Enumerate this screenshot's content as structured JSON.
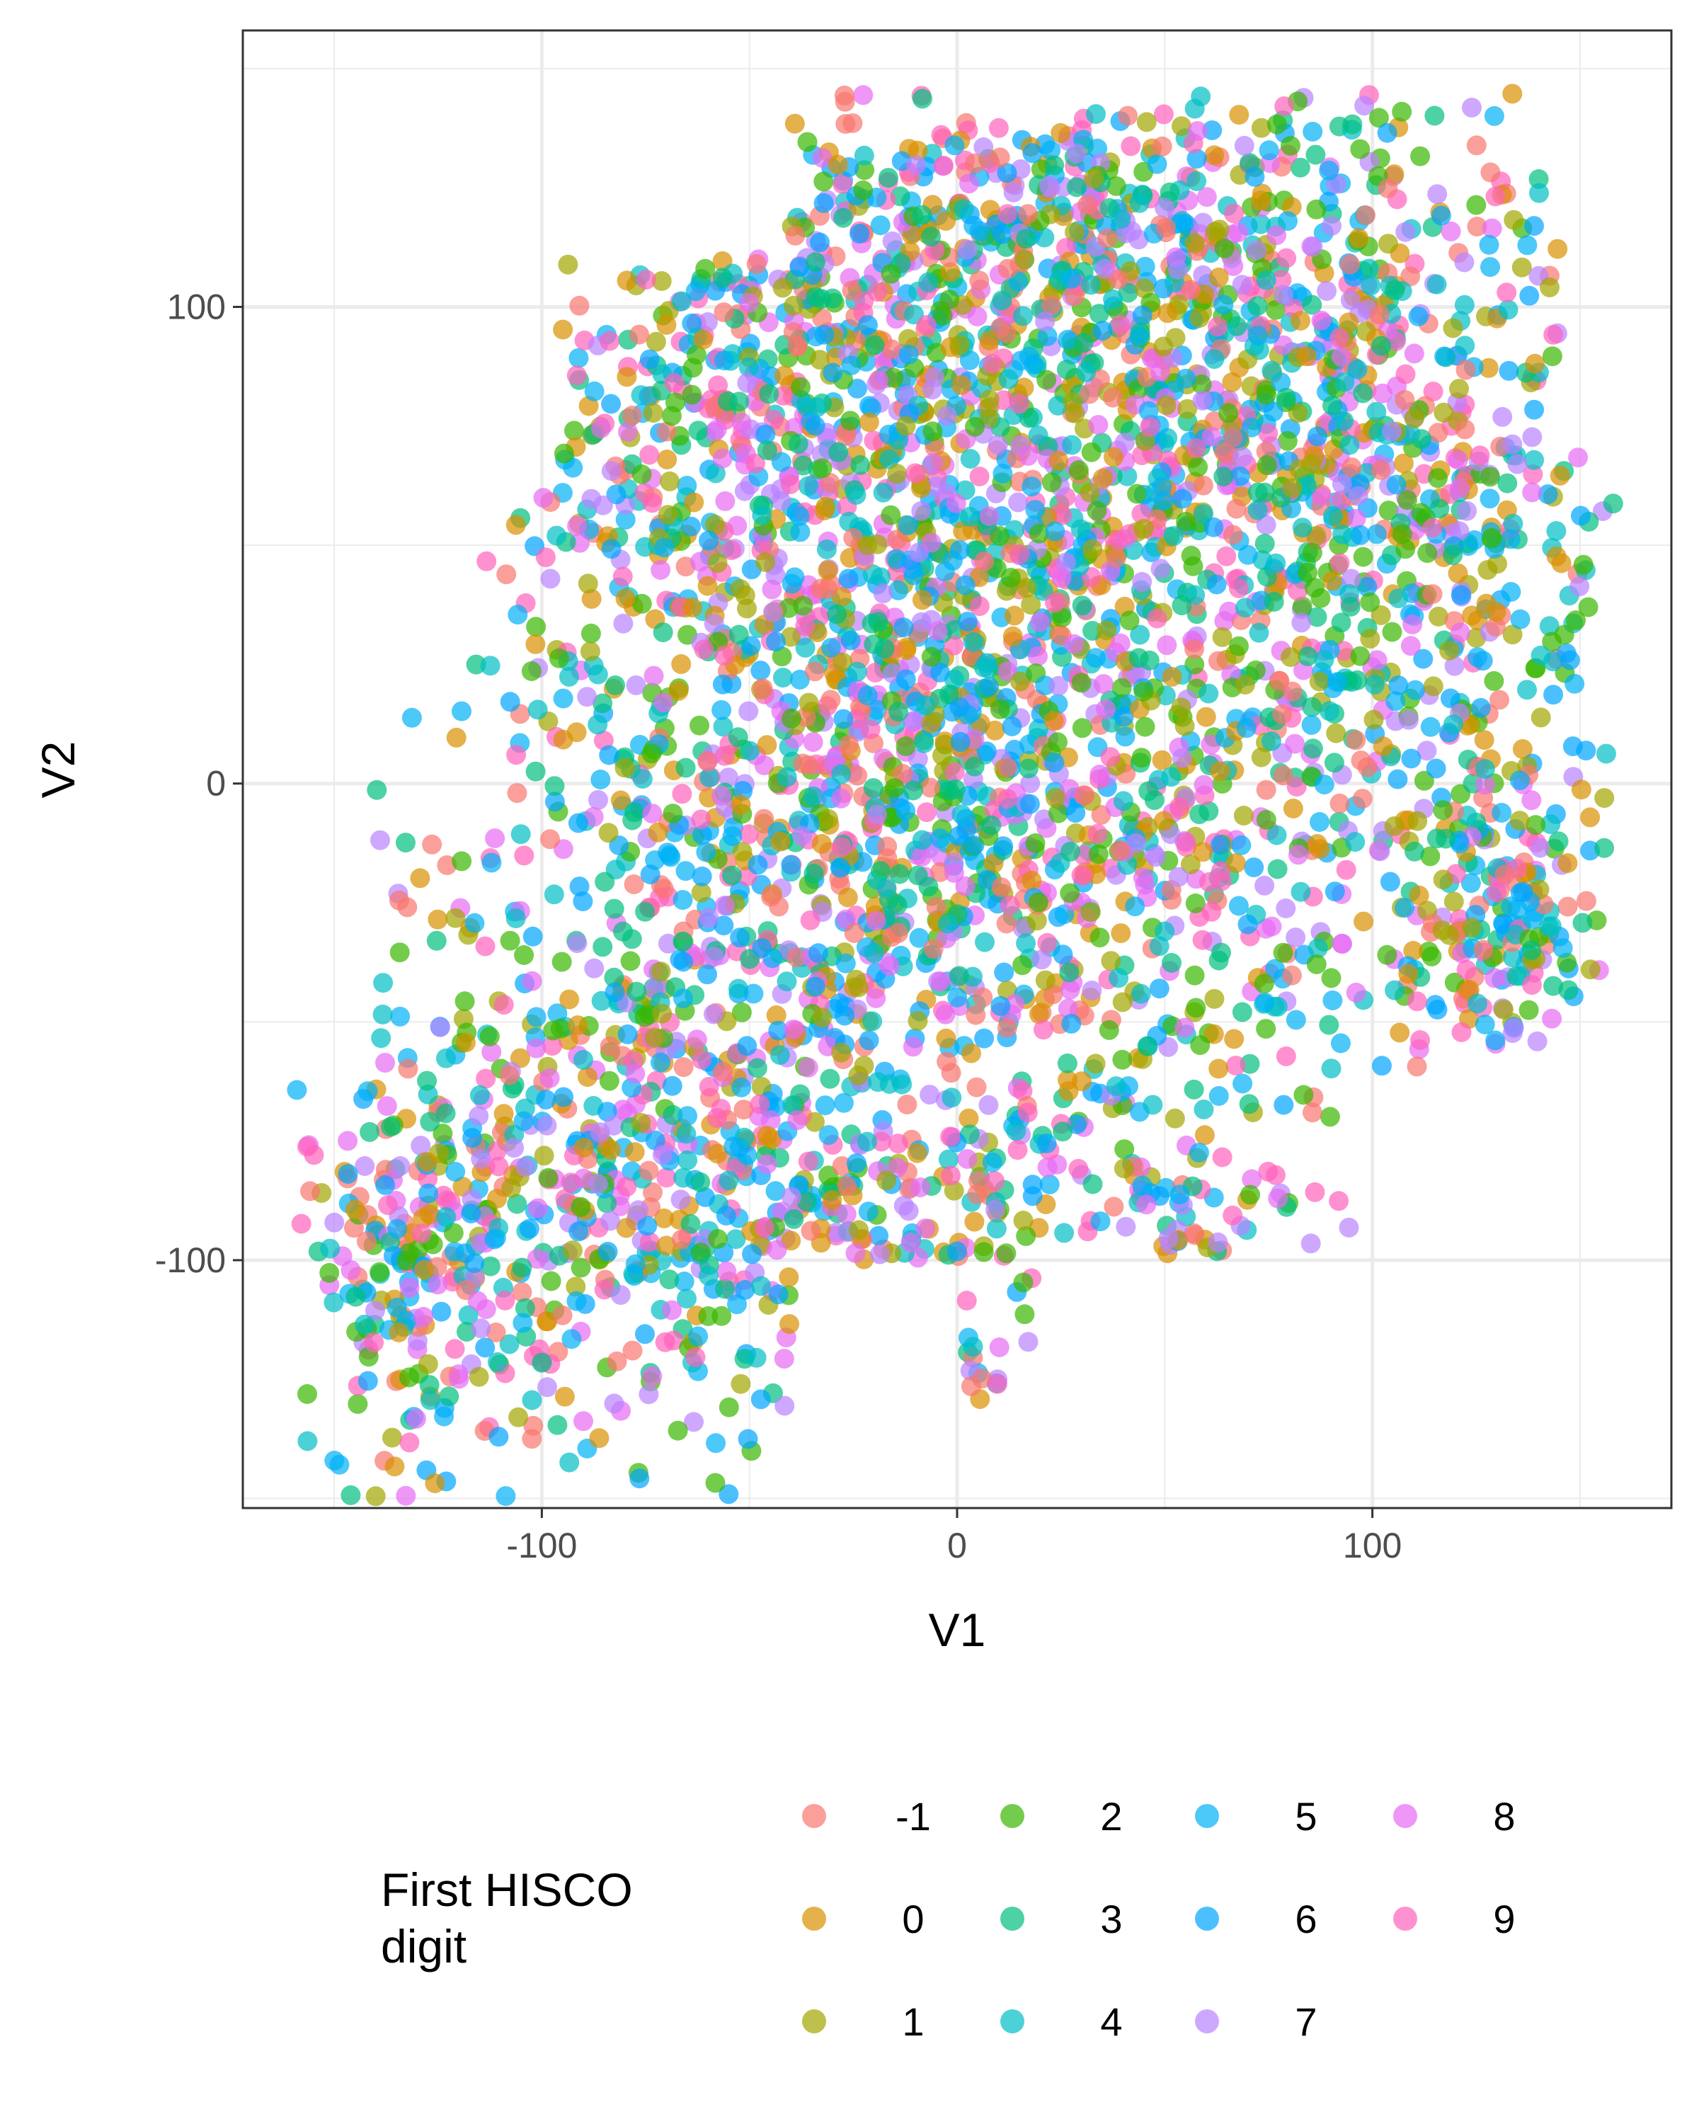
{
  "chart_data": {
    "type": "scatter",
    "xlabel": "V1",
    "ylabel": "V2",
    "xlim": [
      -172,
      172
    ],
    "ylim": [
      -152,
      158
    ],
    "x_ticks": [
      -100,
      0,
      100
    ],
    "y_ticks": [
      -100,
      0,
      100
    ],
    "x_tick_labels": [
      "-100",
      "0",
      "100"
    ],
    "y_tick_labels": [
      "-100",
      "0",
      "100"
    ],
    "grid": true,
    "point_alpha": 0.7,
    "legend": {
      "title_lines": [
        "First HISCO",
        "digit"
      ],
      "position": "bottom",
      "columns": 4,
      "items": [
        {
          "label": "-1",
          "color": "#F8766D"
        },
        {
          "label": "0",
          "color": "#D89000"
        },
        {
          "label": "1",
          "color": "#A3A500"
        },
        {
          "label": "2",
          "color": "#39B600"
        },
        {
          "label": "3",
          "color": "#00BF7D"
        },
        {
          "label": "4",
          "color": "#00BFC4"
        },
        {
          "label": "5",
          "color": "#00B0F6"
        },
        {
          "label": "6",
          "color": "#00A5FF"
        },
        {
          "label": "7",
          "color": "#B983FF"
        },
        {
          "label": "8",
          "color": "#E76BF3"
        },
        {
          "label": "9",
          "color": "#FF62BC"
        }
      ]
    },
    "point_count": 4800,
    "clusters": [
      {
        "cx": 20,
        "cy": 60,
        "sx": 55,
        "sy": 45,
        "w": 0.2
      },
      {
        "cx": 80,
        "cy": 85,
        "sx": 40,
        "sy": 35,
        "w": 0.12
      },
      {
        "cx": -45,
        "cy": 75,
        "sx": 35,
        "sy": 25,
        "w": 0.07
      },
      {
        "cx": 0,
        "cy": 115,
        "sx": 35,
        "sy": 15,
        "w": 0.05
      },
      {
        "cx": -30,
        "cy": -5,
        "sx": 45,
        "sy": 40,
        "w": 0.15
      },
      {
        "cx": 30,
        "cy": -20,
        "sx": 50,
        "sy": 35,
        "w": 0.12
      },
      {
        "cx": -75,
        "cy": -85,
        "sx": 30,
        "sy": 30,
        "w": 0.1
      },
      {
        "cx": -130,
        "cy": -100,
        "sx": 15,
        "sy": 25,
        "w": 0.05
      },
      {
        "cx": 132,
        "cy": -30,
        "sx": 14,
        "sy": 16,
        "w": 0.04
      },
      {
        "cx": 120,
        "cy": 45,
        "sx": 20,
        "sy": 30,
        "w": 0.04
      },
      {
        "cx": 58,
        "cy": -88,
        "sx": 10,
        "sy": 6,
        "w": 0.01
      },
      {
        "cx": -10,
        "cy": -90,
        "sx": 25,
        "sy": 12,
        "w": 0.02
      },
      {
        "cx": 10,
        "cy": -122,
        "sx": 6,
        "sy": 4,
        "w": 0.003
      }
    ]
  }
}
